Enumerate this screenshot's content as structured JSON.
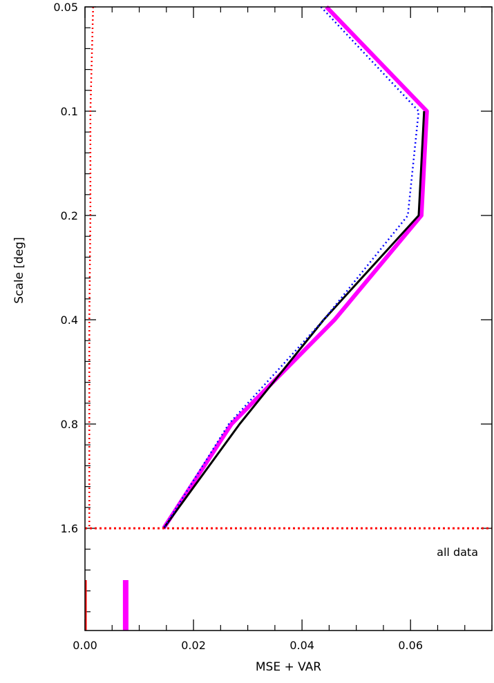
{
  "chart_data": {
    "type": "line",
    "title": "",
    "xlabel": "MSE + VAR",
    "ylabel": "Scale [deg]",
    "xlim": [
      0,
      0.075
    ],
    "y_scale": "log",
    "ylim": [
      0.05,
      1.6
    ],
    "x_ticks": [
      "0.00",
      "0.02",
      "0.04",
      "0.06"
    ],
    "y_ticks": [
      "0.05",
      "0.1",
      "0.2",
      "0.4",
      "0.8",
      "1.6"
    ],
    "grid": false,
    "legend": "none",
    "series": [
      {
        "color": "#ff00ff",
        "style": "solid-thick",
        "x": [
          0.0445,
          0.063,
          0.062,
          0.046,
          0.027,
          0.0145
        ],
        "y": [
          0.05,
          0.1,
          0.2,
          0.4,
          0.8,
          1.6
        ]
      },
      {
        "color": "#000000",
        "style": "solid",
        "x": [
          0.0625,
          0.0615,
          0.044,
          0.0285,
          0.0145
        ],
        "y": [
          0.1,
          0.2,
          0.4,
          0.8,
          1.6
        ]
      },
      {
        "color": "#0000ff",
        "style": "dotted",
        "x": [
          0.0435,
          0.0615,
          0.0595,
          0.044,
          0.0265,
          0.0145
        ],
        "y": [
          0.05,
          0.1,
          0.2,
          0.4,
          0.8,
          1.6
        ]
      },
      {
        "color": "#ff0000",
        "style": "dotted",
        "x": [
          0.0015,
          0.001,
          0.001,
          0.0008,
          0.0008,
          0.0008
        ],
        "y": [
          0.05,
          0.1,
          0.2,
          0.4,
          0.8,
          1.6
        ]
      }
    ],
    "reference_line": {
      "y": 1.6,
      "color": "#ff0000",
      "style": "dotted"
    },
    "all_data_label": "all data",
    "all_data_markers": [
      {
        "x": 0.0,
        "color": "#ff0000"
      },
      {
        "x": 0.0075,
        "color": "#ff00ff"
      }
    ]
  }
}
